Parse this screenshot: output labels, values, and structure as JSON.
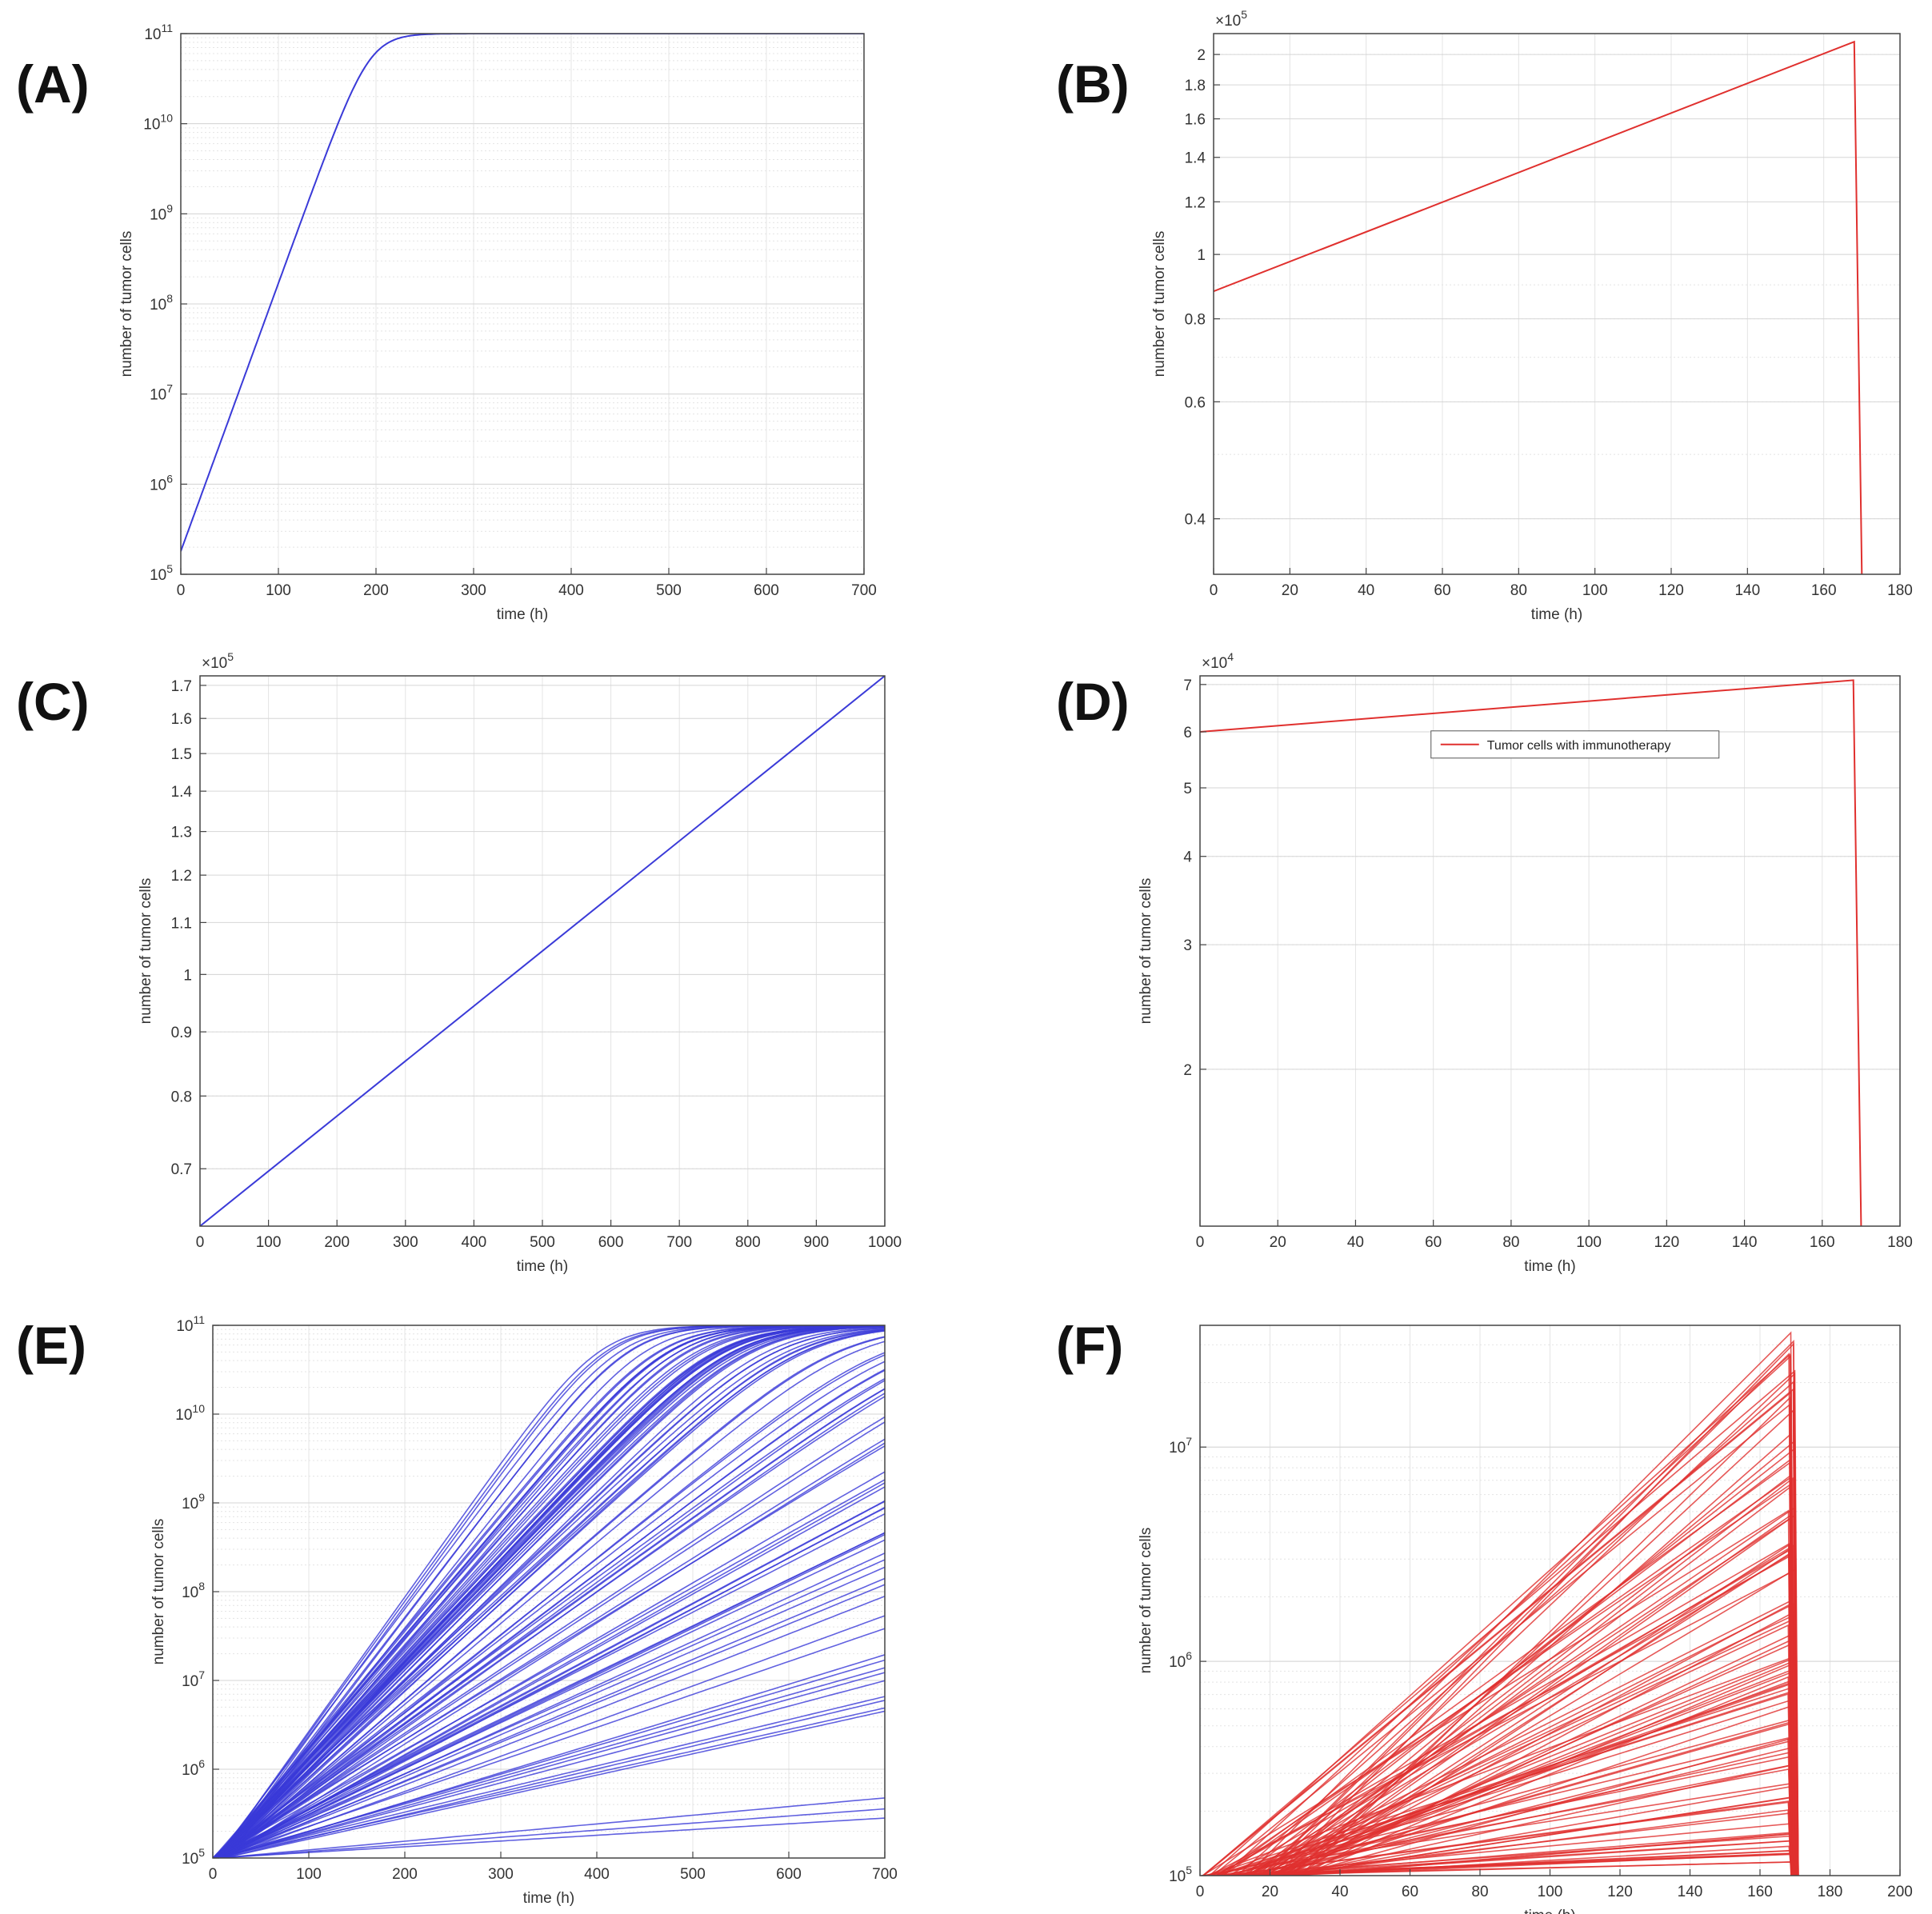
{
  "figure": {
    "colors": {
      "blue": "#3a3ad8",
      "red": "#e0302e",
      "grid": "#e4e4e4",
      "axis": "#444444"
    },
    "panels": [
      {
        "label": "(A)"
      },
      {
        "label": "(B)"
      },
      {
        "label": "(C)"
      },
      {
        "label": "(D)"
      },
      {
        "label": "(E)"
      },
      {
        "label": "(F)"
      }
    ]
  },
  "chart_data": [
    {
      "panel": "(A)",
      "type": "line",
      "yscale": "log",
      "xlabel": "time (h)",
      "ylabel": "number of tumor cells",
      "xlim": [
        0,
        700
      ],
      "ylim": [
        100000,
        100000000000
      ],
      "xticks": [
        0,
        100,
        200,
        300,
        400,
        500,
        600,
        700
      ],
      "yticks": [
        {
          "value": 100000,
          "label": "10^5"
        },
        {
          "value": 1000000,
          "label": "10^6"
        },
        {
          "value": 10000000,
          "label": "10^7"
        },
        {
          "value": 100000000,
          "label": "10^8"
        },
        {
          "value": 1000000000,
          "label": "10^9"
        },
        {
          "value": 10000000000,
          "label": "10^10"
        },
        {
          "value": 100000000000,
          "label": "10^11"
        }
      ],
      "series": [
        {
          "name": "tumor cells",
          "color": "#3a3ad8",
          "model": "logistic",
          "n0": 180000,
          "rate": 0.0685,
          "capacity": 100000000000
        }
      ]
    },
    {
      "panel": "(B)",
      "type": "line",
      "yscale": "log",
      "multiplier_label": "×10^5",
      "xlabel": "time (h)",
      "ylabel": "number of tumor cells",
      "xlim": [
        0,
        180
      ],
      "ylim": [
        33000,
        215000
      ],
      "xticks": [
        0,
        20,
        40,
        60,
        80,
        100,
        120,
        140,
        160,
        180
      ],
      "yticks": [
        {
          "value": 40000,
          "label": "0.4"
        },
        {
          "value": 60000,
          "label": "0.6"
        },
        {
          "value": 80000,
          "label": "0.8"
        },
        {
          "value": 100000,
          "label": "1"
        },
        {
          "value": 120000,
          "label": "1.2"
        },
        {
          "value": 140000,
          "label": "1.4"
        },
        {
          "value": 160000,
          "label": "1.6"
        },
        {
          "value": 180000,
          "label": "1.8"
        },
        {
          "value": 200000,
          "label": "2"
        }
      ],
      "series": [
        {
          "name": "tumor cells",
          "color": "#e0302e",
          "x": [
            0,
            168,
            170
          ],
          "y": [
            88000,
            209000,
            33000
          ]
        }
      ]
    },
    {
      "panel": "(C)",
      "type": "line",
      "yscale": "log",
      "multiplier_label": "×10^5",
      "xlabel": "time (h)",
      "ylabel": "number of tumor cells",
      "xlim": [
        0,
        1000
      ],
      "ylim": [
        63000,
        173000
      ],
      "xticks": [
        0,
        100,
        200,
        300,
        400,
        500,
        600,
        700,
        800,
        900,
        1000
      ],
      "yticks": [
        {
          "value": 70000,
          "label": "0.7"
        },
        {
          "value": 80000,
          "label": "0.8"
        },
        {
          "value": 90000,
          "label": "0.9"
        },
        {
          "value": 100000,
          "label": "1"
        },
        {
          "value": 110000,
          "label": "1.1"
        },
        {
          "value": 120000,
          "label": "1.2"
        },
        {
          "value": 130000,
          "label": "1.3"
        },
        {
          "value": 140000,
          "label": "1.4"
        },
        {
          "value": 150000,
          "label": "1.5"
        },
        {
          "value": 160000,
          "label": "1.6"
        },
        {
          "value": 170000,
          "label": "1.7"
        }
      ],
      "series": [
        {
          "name": "tumor cells",
          "color": "#3a3ad8",
          "x": [
            0,
            1000
          ],
          "y": [
            63000,
            173000
          ]
        }
      ]
    },
    {
      "panel": "(D)",
      "type": "line",
      "yscale": "log",
      "multiplier_label": "×10^4",
      "xlabel": "time (h)",
      "ylabel": "number of tumor cells",
      "xlim": [
        0,
        180
      ],
      "ylim": [
        12000,
        72000
      ],
      "xticks": [
        0,
        20,
        40,
        60,
        80,
        100,
        120,
        140,
        160,
        180
      ],
      "yticks": [
        {
          "value": 20000,
          "label": "2"
        },
        {
          "value": 30000,
          "label": "3"
        },
        {
          "value": 40000,
          "label": "4"
        },
        {
          "value": 50000,
          "label": "5"
        },
        {
          "value": 60000,
          "label": "6"
        },
        {
          "value": 70000,
          "label": "7"
        }
      ],
      "legend": {
        "entries": [
          "Tumor cells with immunotherapy"
        ],
        "location": "right"
      },
      "series": [
        {
          "name": "Tumor cells with immunotherapy",
          "color": "#e0302e",
          "x": [
            0,
            168,
            170
          ],
          "y": [
            60000,
            71000,
            12000
          ]
        }
      ]
    },
    {
      "panel": "(E)",
      "type": "line",
      "yscale": "log",
      "xlabel": "time (h)",
      "ylabel": "number of tumor cells",
      "xlim": [
        0,
        700
      ],
      "ylim": [
        100000,
        100000000000
      ],
      "xticks": [
        0,
        100,
        200,
        300,
        400,
        500,
        600,
        700
      ],
      "yticks": [
        {
          "value": 100000,
          "label": "10^5"
        },
        {
          "value": 1000000,
          "label": "10^6"
        },
        {
          "value": 10000000,
          "label": "10^7"
        },
        {
          "value": 100000000,
          "label": "10^8"
        },
        {
          "value": 1000000000,
          "label": "10^9"
        },
        {
          "value": 10000000000,
          "label": "10^10"
        },
        {
          "value": 100000000000,
          "label": "10^11"
        }
      ],
      "ensemble": {
        "count": 100,
        "model": "logistic",
        "n0": 100000,
        "capacity": 100000000000,
        "rate_range": [
          0.0007,
          0.035
        ],
        "color": "#3a3ad8"
      }
    },
    {
      "panel": "(F)",
      "type": "line",
      "yscale": "log",
      "xlabel": "time (h)",
      "ylabel": "number of tumor cells",
      "xlim": [
        0,
        200
      ],
      "ylim": [
        100000,
        37000000
      ],
      "xticks": [
        0,
        20,
        40,
        60,
        80,
        100,
        120,
        140,
        160,
        180,
        200
      ],
      "yticks": [
        {
          "value": 100000,
          "label": "10^5"
        },
        {
          "value": 1000000,
          "label": "10^6"
        },
        {
          "value": 10000000,
          "label": "10^7"
        }
      ],
      "ensemble": {
        "count": 100,
        "model": "exponential-then-drop",
        "n0": 100000,
        "peak_range": [
          115000,
          36000000
        ],
        "treatment_time_range": [
          168,
          170
        ],
        "color": "#e0302e"
      }
    }
  ]
}
